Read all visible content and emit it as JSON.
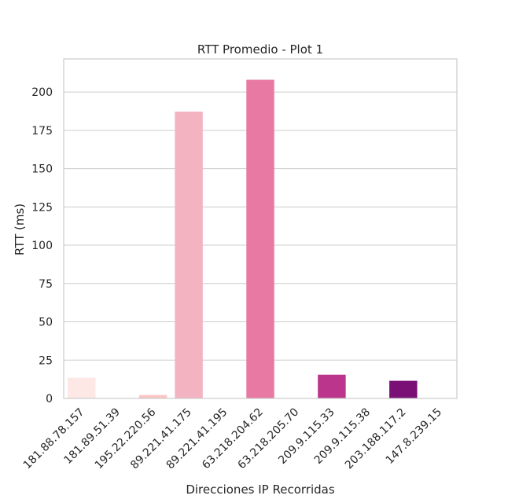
{
  "chart_data": {
    "type": "bar",
    "title": "RTT Promedio - Plot 1",
    "xlabel": "Direcciones IP Recorridas",
    "ylabel": "RTT (ms)",
    "categories": [
      "181.88.78.157",
      "181.89.51.39",
      "195.22.220.56",
      "89.221.41.175",
      "89.221.41.195",
      "63.218.204.62",
      "63.218.205.70",
      "209.9.115.33",
      "209.9.115.38",
      "203.188.117.2",
      "147.8.239.15"
    ],
    "values": [
      13.5,
      0,
      2.2,
      187.2,
      0,
      208,
      0,
      15.5,
      0,
      11.5,
      0
    ],
    "colors": [
      "#fde8e6",
      "#fcd9d6",
      "#fbc5c3",
      "#f4b3c0",
      "#f097b4",
      "#e779a3",
      "#d75497",
      "#bb358c",
      "#9a1a84",
      "#7a0f76",
      "#4a006a"
    ],
    "ylim": [
      0,
      221.6
    ],
    "yticks": [
      0,
      25,
      50,
      75,
      100,
      125,
      150,
      175,
      200
    ],
    "grid": true,
    "legend": "none"
  }
}
